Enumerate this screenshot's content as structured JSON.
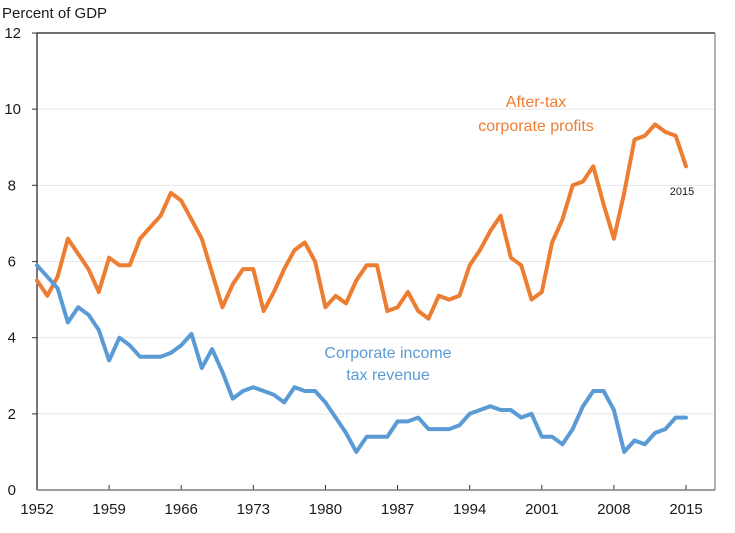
{
  "chart_data": {
    "type": "line",
    "title": "",
    "ylabel": "Percent of GDP",
    "xlabel": "",
    "ylim": [
      0,
      12
    ],
    "xlim": [
      1952,
      2015
    ],
    "yticks": [
      "0",
      "2",
      "4",
      "6",
      "8",
      "10",
      "12"
    ],
    "xticks": [
      "1952",
      "1959",
      "1966",
      "1973",
      "1980",
      "1987",
      "1994",
      "2001",
      "2008",
      "2015"
    ],
    "grid": true,
    "colors": {
      "profits": "#ED7D31",
      "tax": "#5B9BD5",
      "grid": "#e6e6e6",
      "axis": "#1a1a1a"
    },
    "x": [
      1952,
      1953,
      1954,
      1955,
      1956,
      1957,
      1958,
      1959,
      1960,
      1961,
      1962,
      1963,
      1964,
      1965,
      1966,
      1967,
      1968,
      1969,
      1970,
      1971,
      1972,
      1973,
      1974,
      1975,
      1976,
      1977,
      1978,
      1979,
      1980,
      1981,
      1982,
      1983,
      1984,
      1985,
      1986,
      1987,
      1988,
      1989,
      1990,
      1991,
      1992,
      1993,
      1994,
      1995,
      1996,
      1997,
      1998,
      1999,
      2000,
      2001,
      2002,
      2003,
      2004,
      2005,
      2006,
      2007,
      2008,
      2009,
      2010,
      2011,
      2012,
      2013,
      2014,
      2015
    ],
    "series": [
      {
        "name": "After-tax corporate profits",
        "color": "#ED7D31",
        "values": [
          5.5,
          5.1,
          5.6,
          6.6,
          6.2,
          5.8,
          5.2,
          6.1,
          5.9,
          5.9,
          6.6,
          6.9,
          7.2,
          7.8,
          7.6,
          7.1,
          6.6,
          5.7,
          4.8,
          5.4,
          5.8,
          5.8,
          4.7,
          5.2,
          5.8,
          6.3,
          6.5,
          6.0,
          4.8,
          5.1,
          4.9,
          5.5,
          5.9,
          5.9,
          4.7,
          4.8,
          5.2,
          4.7,
          4.5,
          5.1,
          5.0,
          5.1,
          5.9,
          6.3,
          6.8,
          7.2,
          6.1,
          5.9,
          5.0,
          5.2,
          6.5,
          7.1,
          8.0,
          8.1,
          8.5,
          7.5,
          6.6,
          7.8,
          9.2,
          9.3,
          9.6,
          9.4,
          9.3,
          8.5
        ]
      },
      {
        "name": "Corporate income tax revenue",
        "color": "#5B9BD5",
        "values": [
          5.9,
          5.6,
          5.3,
          4.4,
          4.8,
          4.6,
          4.2,
          3.4,
          4.0,
          3.8,
          3.5,
          3.5,
          3.5,
          3.6,
          3.8,
          4.1,
          3.2,
          3.7,
          3.1,
          2.4,
          2.6,
          2.7,
          2.6,
          2.5,
          2.3,
          2.7,
          2.6,
          2.6,
          2.3,
          1.9,
          1.5,
          1.0,
          1.4,
          1.4,
          1.4,
          1.8,
          1.8,
          1.9,
          1.6,
          1.6,
          1.6,
          1.7,
          2.0,
          2.1,
          2.2,
          2.1,
          2.1,
          1.9,
          2.0,
          1.4,
          1.4,
          1.2,
          1.6,
          2.2,
          2.6,
          2.6,
          2.1,
          1.0,
          1.3,
          1.2,
          1.5,
          1.6,
          1.9,
          1.9
        ]
      }
    ],
    "annotations": [
      {
        "text_lines": [
          "After-tax",
          "corporate profits"
        ],
        "series": "After-tax corporate profits"
      },
      {
        "text_lines": [
          "Corporate income",
          "tax revenue"
        ],
        "series": "Corporate income tax revenue"
      },
      {
        "text_lines": [
          "2015"
        ],
        "series": "After-tax corporate profits",
        "note": "end-point label"
      }
    ]
  }
}
